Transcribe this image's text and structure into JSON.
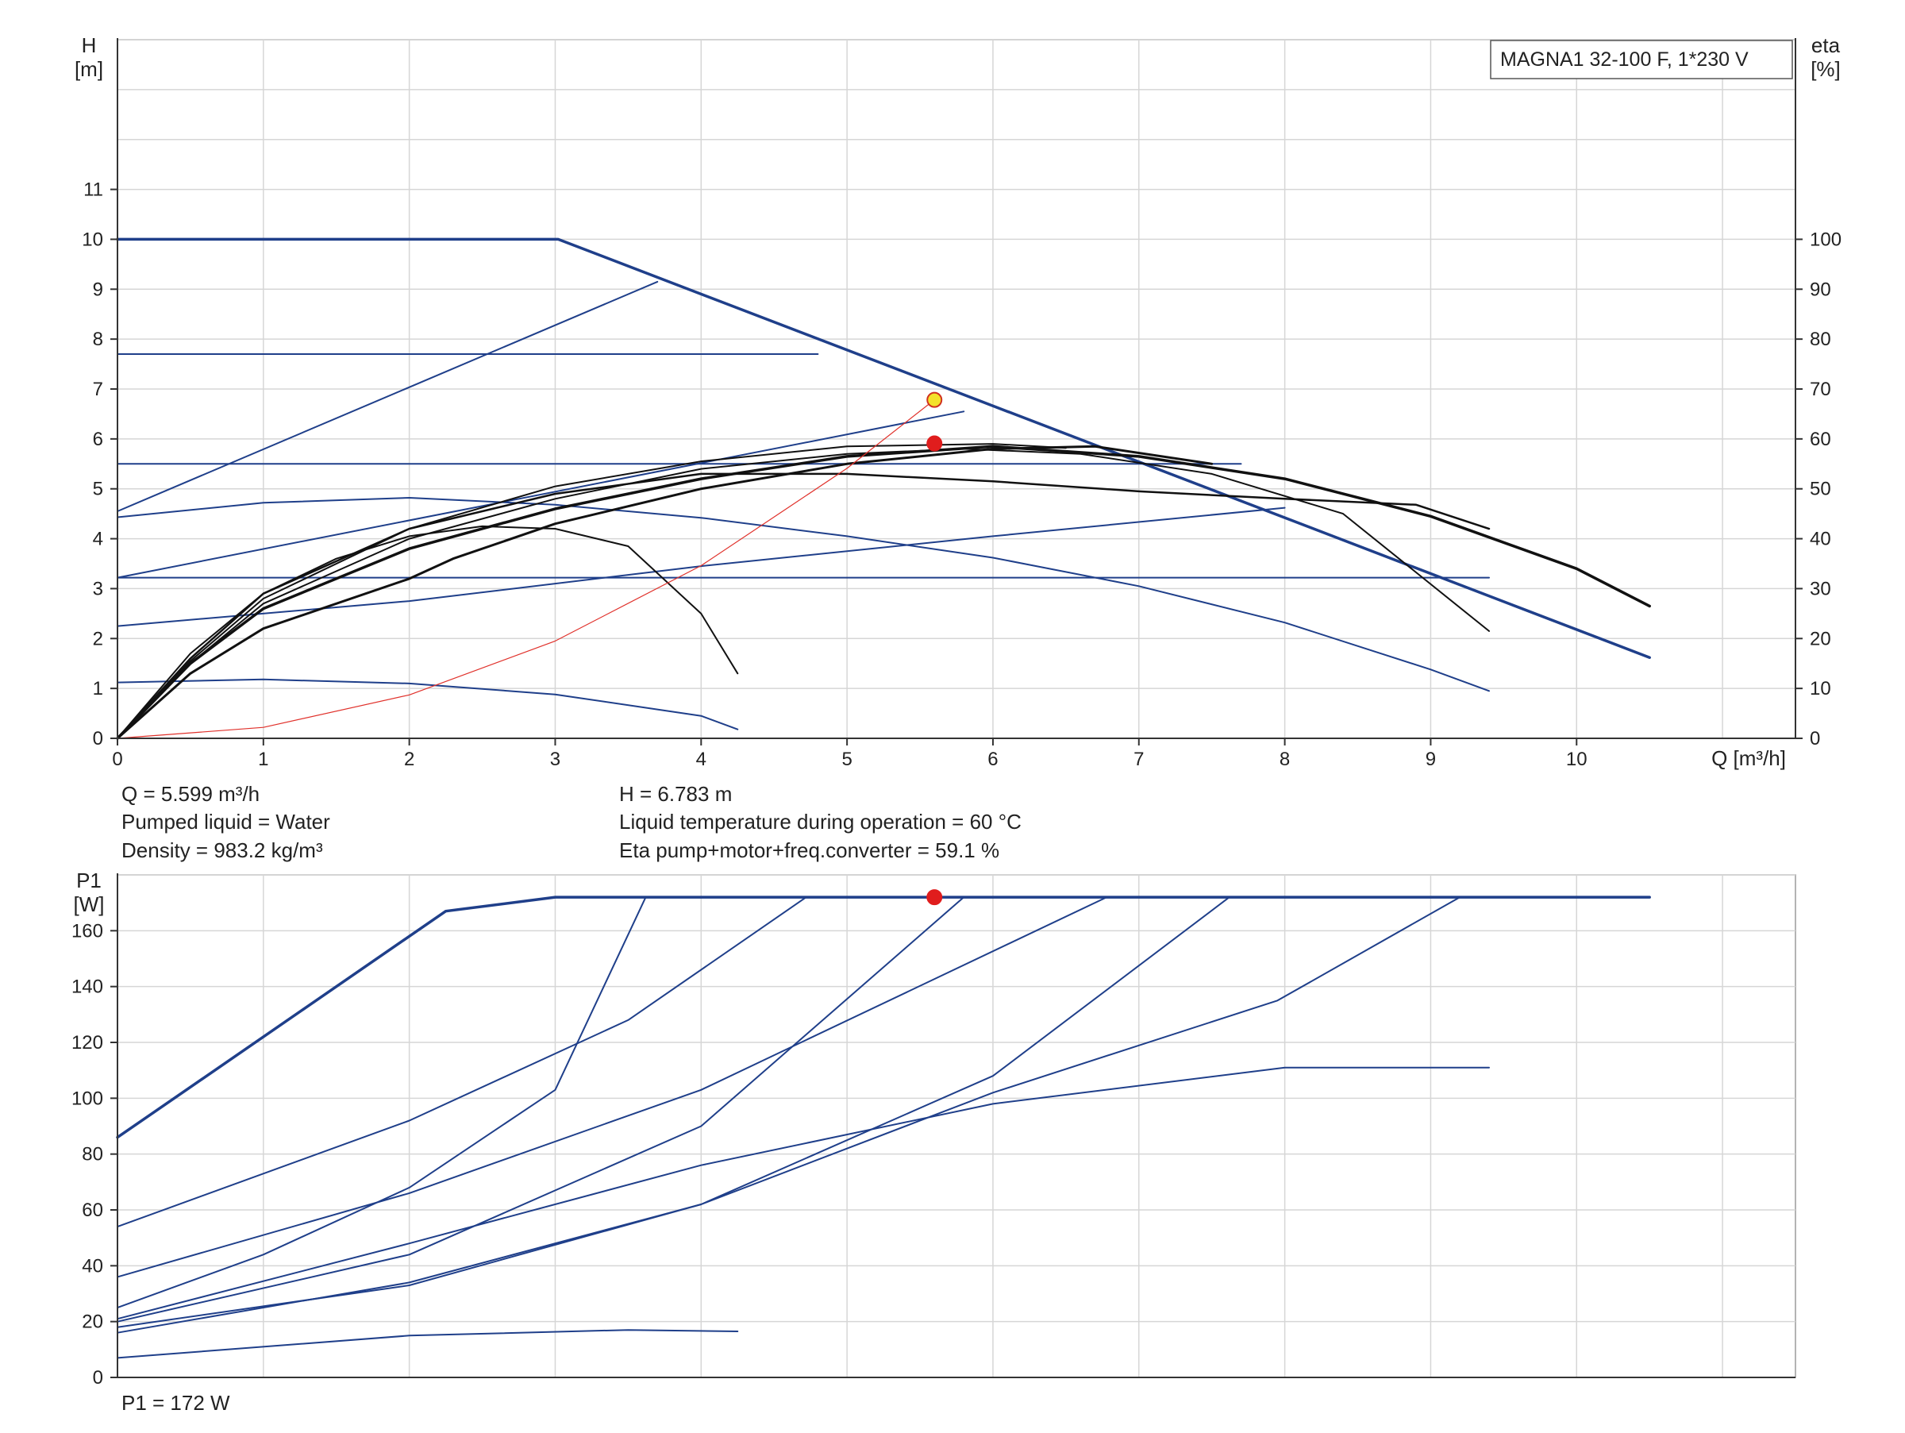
{
  "chart_data": [
    {
      "type": "line",
      "title": "",
      "legend_box": "MAGNA1 32-100 F, 1*230 V",
      "legend_position": "top-right",
      "grid": true,
      "xlabel": "Q [m³/h]",
      "ylabel": [
        "H",
        "[m]"
      ],
      "ylabel_right": [
        "eta",
        "[%]"
      ],
      "xlim": [
        0,
        11.5
      ],
      "ylim": [
        0,
        14
      ],
      "ylim_right": [
        0,
        140
      ],
      "xticks": [
        "0",
        "1",
        "2",
        "3",
        "4",
        "5",
        "6",
        "7",
        "8",
        "9",
        "10"
      ],
      "yticks": [
        "0",
        "1",
        "2",
        "3",
        "4",
        "5",
        "6",
        "7",
        "8",
        "9",
        "10",
        "11"
      ],
      "yticks_right": [
        "0",
        "10",
        "20",
        "30",
        "40",
        "50",
        "60",
        "70",
        "80",
        "90",
        "100"
      ],
      "series": [
        {
          "color": "#1f3f8a",
          "width": 3.5,
          "points": [
            [
              0,
              10
            ],
            [
              3.02,
              10
            ],
            [
              10.5,
              1.62
            ]
          ]
        },
        {
          "color": "#1f3f8a",
          "width": 2,
          "points": [
            [
              0,
              7.7
            ],
            [
              4.8,
              7.7
            ]
          ]
        },
        {
          "color": "#1f3f8a",
          "width": 2,
          "points": [
            [
              0,
              5.5
            ],
            [
              7.7,
              5.5
            ]
          ]
        },
        {
          "color": "#1f3f8a",
          "width": 2,
          "points": [
            [
              0,
              3.22
            ],
            [
              9.4,
              3.22
            ]
          ]
        },
        {
          "color": "#1f3f8a",
          "width": 2,
          "points": [
            [
              0,
              4.55
            ],
            [
              3.7,
              9.15
            ]
          ]
        },
        {
          "color": "#1f3f8a",
          "width": 2,
          "points": [
            [
              0,
              3.22
            ],
            [
              5.8,
              6.55
            ]
          ]
        },
        {
          "color": "#1f3f8a",
          "width": 2,
          "points": [
            [
              0,
              2.25
            ],
            [
              2,
              2.75
            ],
            [
              4,
              3.45
            ],
            [
              6,
              4.05
            ],
            [
              8,
              4.62
            ]
          ]
        },
        {
          "color": "#1f3f8a",
          "width": 2,
          "points": [
            [
              0,
              4.43
            ],
            [
              1,
              4.72
            ],
            [
              2,
              4.82
            ],
            [
              3,
              4.68
            ],
            [
              4,
              4.42
            ],
            [
              5,
              4.05
            ],
            [
              6,
              3.62
            ],
            [
              7,
              3.05
            ],
            [
              8,
              2.32
            ],
            [
              9,
              1.38
            ],
            [
              9.4,
              0.95
            ]
          ]
        },
        {
          "color": "#1f3f8a",
          "width": 2,
          "points": [
            [
              0,
              1.12
            ],
            [
              1,
              1.18
            ],
            [
              2,
              1.1
            ],
            [
              3,
              0.88
            ],
            [
              4,
              0.45
            ],
            [
              4.25,
              0.18
            ]
          ]
        },
        {
          "color": "#111111",
          "width": 3.5,
          "points": [
            [
              0,
              0
            ],
            [
              0.5,
              15
            ],
            [
              1,
              26
            ],
            [
              2,
              38
            ],
            [
              3,
              46
            ],
            [
              4,
              52
            ],
            [
              5,
              56.5
            ],
            [
              6,
              58.5
            ],
            [
              7,
              56.5
            ],
            [
              8,
              52
            ],
            [
              9,
              44.5
            ],
            [
              10,
              34
            ],
            [
              10.5,
              26.5
            ]
          ]
        },
        {
          "color": "#111111",
          "width": 2,
          "points": [
            [
              0,
              0
            ],
            [
              0.5,
              17
            ],
            [
              1,
              29
            ],
            [
              1.5,
              36
            ],
            [
              2,
              40.5
            ],
            [
              2.5,
              42.5
            ],
            [
              3,
              42
            ],
            [
              3.5,
              38.5
            ],
            [
              4,
              25
            ],
            [
              4.25,
              13
            ]
          ]
        },
        {
          "color": "#111111",
          "width": 2.5,
          "points": [
            [
              0,
              0
            ],
            [
              0.5,
              16
            ],
            [
              1,
              29
            ],
            [
              2,
              42
            ],
            [
              3,
              49
            ],
            [
              4,
              53
            ],
            [
              5,
              53
            ],
            [
              6,
              51.5
            ],
            [
              7,
              49.5
            ],
            [
              8,
              48
            ],
            [
              8.9,
              46.8
            ],
            [
              9.4,
              42
            ]
          ]
        },
        {
          "color": "#111111",
          "width": 2,
          "points": [
            [
              0,
              0
            ],
            [
              0.5,
              15
            ],
            [
              1,
              27
            ],
            [
              2,
              40
            ],
            [
              3,
              48
            ],
            [
              4,
              54
            ],
            [
              5,
              57
            ],
            [
              5.8,
              58
            ],
            [
              6.6,
              57
            ],
            [
              7.5,
              53
            ],
            [
              8.4,
              45
            ],
            [
              9.4,
              21.5
            ]
          ]
        },
        {
          "color": "#111111",
          "width": 3,
          "points": [
            [
              0,
              0
            ],
            [
              0.5,
              13
            ],
            [
              1,
              22
            ],
            [
              2,
              32
            ],
            [
              2.3,
              36
            ],
            [
              3,
              43
            ],
            [
              4,
              50
            ],
            [
              5,
              55
            ],
            [
              6,
              58
            ],
            [
              6.7,
              58.5
            ],
            [
              7.5,
              55
            ]
          ]
        },
        {
          "color": "#111111",
          "width": 2,
          "points": [
            [
              0,
              0
            ],
            [
              0.5,
              15.5
            ],
            [
              1,
              28
            ],
            [
              2,
              42
            ],
            [
              3,
              50.5
            ],
            [
              4,
              55.5
            ],
            [
              5,
              58.5
            ],
            [
              6,
              59
            ],
            [
              6.5,
              58.2
            ]
          ]
        },
        {
          "color": "#e0302a",
          "width": 1.2,
          "points": [
            [
              0,
              0
            ],
            [
              1,
              0.22
            ],
            [
              2,
              0.87
            ],
            [
              3,
              1.95
            ],
            [
              4,
              3.46
            ],
            [
              5,
              5.41
            ],
            [
              5.599,
              6.783
            ]
          ]
        }
      ],
      "markers": [
        {
          "x": 5.599,
          "y": 6.783,
          "axis": "left",
          "fill": "#f4e22b",
          "stroke": "#d0301f"
        },
        {
          "x": 5.599,
          "y": 59.1,
          "axis": "right",
          "fill": "#e01d1d",
          "stroke": "#e01d1d"
        }
      ]
    },
    {
      "type": "line",
      "title": "",
      "grid": true,
      "xlabel": "",
      "ylabel": [
        "P1",
        "[W]"
      ],
      "xlim": [
        0,
        11.5
      ],
      "ylim": [
        0,
        180
      ],
      "yticks": [
        "0",
        "20",
        "40",
        "60",
        "80",
        "100",
        "120",
        "140",
        "160"
      ],
      "series": [
        {
          "color": "#1f3f8a",
          "width": 3.5,
          "points": [
            [
              0,
              86
            ],
            [
              2.25,
              167
            ],
            [
              3,
              172
            ],
            [
              10.5,
              172
            ]
          ]
        },
        {
          "color": "#1f3f8a",
          "width": 2,
          "points": [
            [
              0,
              25
            ],
            [
              1,
              44
            ],
            [
              2,
              68
            ],
            [
              3,
              103
            ],
            [
              3.62,
              172
            ]
          ]
        },
        {
          "color": "#1f3f8a",
          "width": 2,
          "points": [
            [
              0,
              54
            ],
            [
              2,
              92
            ],
            [
              3.5,
              128
            ],
            [
              4.72,
              172
            ]
          ]
        },
        {
          "color": "#1f3f8a",
          "width": 2,
          "points": [
            [
              0,
              20
            ],
            [
              2,
              44
            ],
            [
              4,
              90
            ],
            [
              5.8,
              172
            ]
          ]
        },
        {
          "color": "#1f3f8a",
          "width": 2,
          "points": [
            [
              0,
              36
            ],
            [
              2,
              66
            ],
            [
              4,
              103
            ],
            [
              6.78,
              172
            ]
          ]
        },
        {
          "color": "#1f3f8a",
          "width": 2,
          "points": [
            [
              0,
              18
            ],
            [
              2,
              33
            ],
            [
              4,
              62
            ],
            [
              6,
              108
            ],
            [
              7.62,
              172
            ]
          ]
        },
        {
          "color": "#1f3f8a",
          "width": 2,
          "points": [
            [
              0,
              16
            ],
            [
              2,
              34
            ],
            [
              4,
              62
            ],
            [
              6,
              102
            ],
            [
              7.95,
              135
            ],
            [
              9.2,
              172
            ]
          ]
        },
        {
          "color": "#1f3f8a",
          "width": 2,
          "points": [
            [
              0,
              21
            ],
            [
              2,
              48
            ],
            [
              4,
              76
            ],
            [
              6,
              98
            ],
            [
              8,
              111
            ],
            [
              9.4,
              111
            ]
          ]
        },
        {
          "color": "#1f3f8a",
          "width": 2,
          "points": [
            [
              0,
              7
            ],
            [
              2,
              15
            ],
            [
              3.5,
              17
            ],
            [
              4.25,
              16.5
            ]
          ]
        }
      ],
      "markers": [
        {
          "x": 5.599,
          "y": 172,
          "fill": "#e01d1d",
          "stroke": "#e01d1d"
        }
      ]
    }
  ],
  "info": {
    "q": "Q = 5.599 m³/h",
    "liquid": "Pumped liquid = Water",
    "density": "Density = 983.2 kg/m³",
    "h": "H = 6.783 m",
    "temperature": "Liquid temperature during operation = 60 °C",
    "eta": "Eta pump+motor+freq.converter = 59.1 %",
    "p1": "P1 = 172 W"
  }
}
